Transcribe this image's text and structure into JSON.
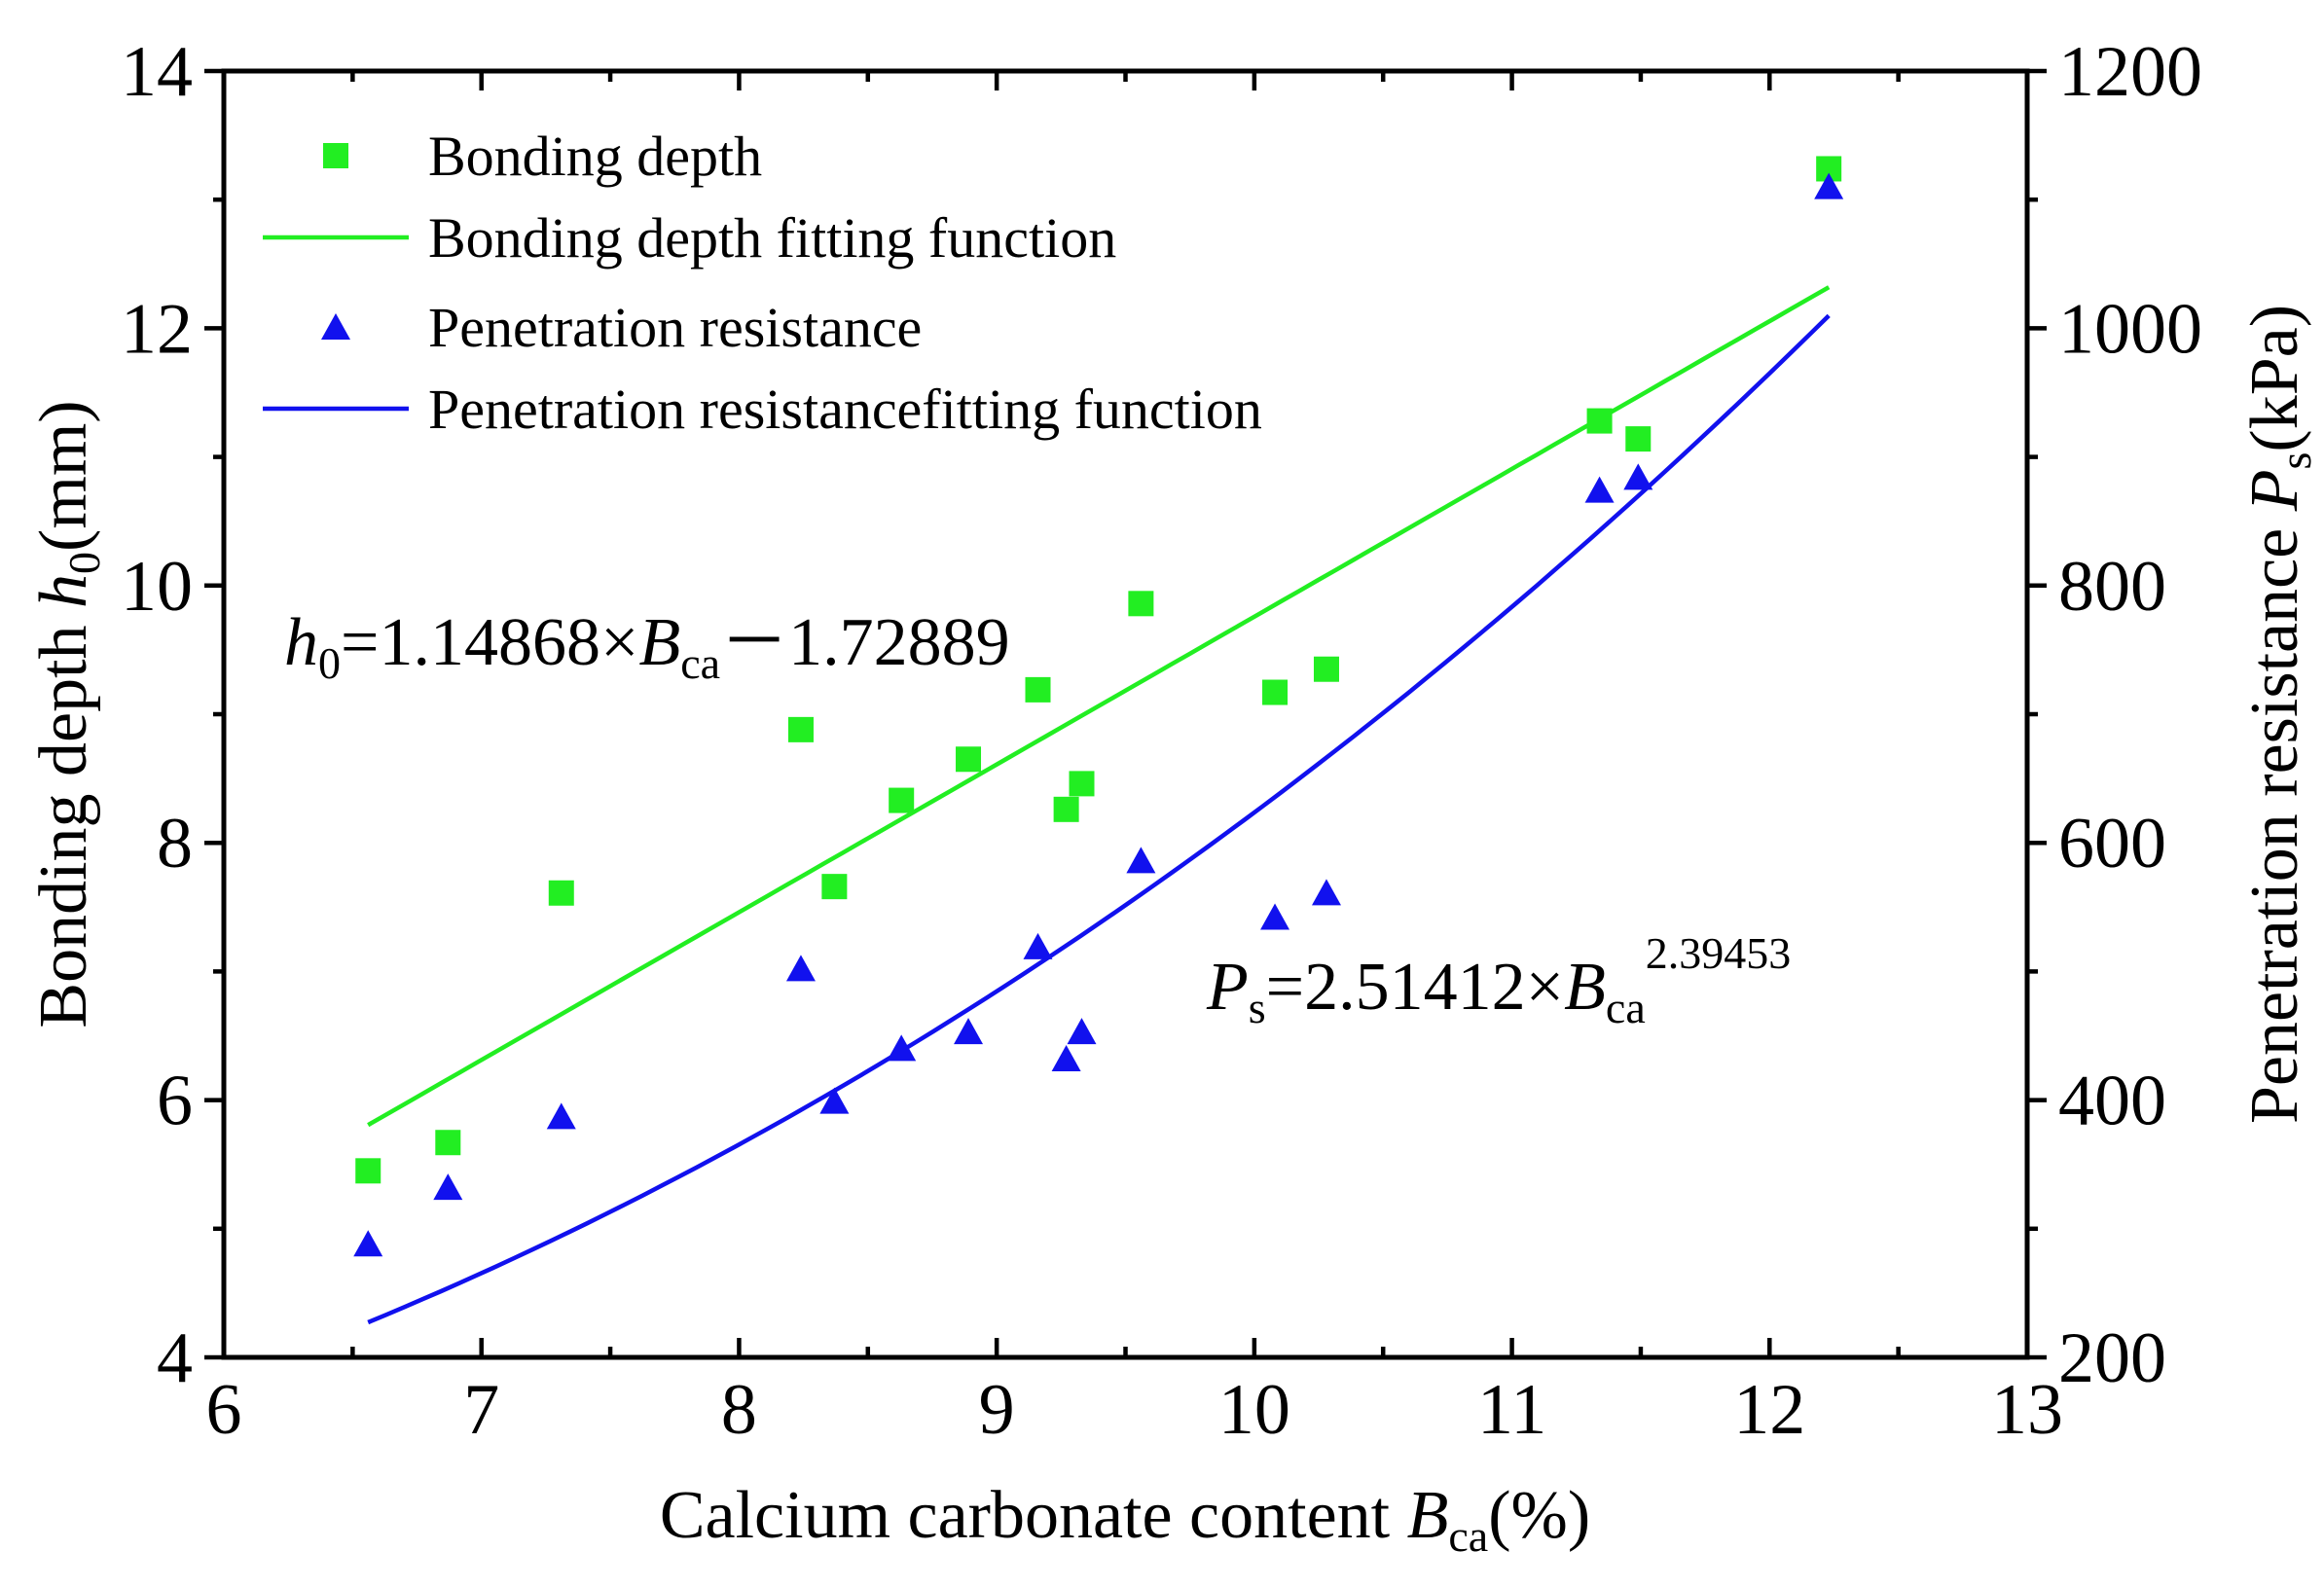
{
  "chart_data": {
    "type": "scatter",
    "title": "",
    "xlabel": {
      "text": "Calcium carbonate content ",
      "var": "B",
      "sub": "ca",
      "suffix": "(%)"
    },
    "ylabel": {
      "text": "Bonding depth ",
      "var": "h",
      "sub": "0",
      "suffix": "(mm)"
    },
    "y2label": {
      "text": "Penetration resistance ",
      "var": "P",
      "sub": "s",
      "suffix": "(kPa)"
    },
    "xlim": [
      6,
      13
    ],
    "ylim": [
      4,
      14
    ],
    "y2lim": [
      200,
      1200
    ],
    "x_ticks": [
      "6",
      "7",
      "8",
      "9",
      "10",
      "11",
      "12",
      "13"
    ],
    "y_ticks": [
      "4",
      "6",
      "8",
      "10",
      "12",
      "14"
    ],
    "y2_ticks": [
      "200",
      "400",
      "600",
      "800",
      "1000",
      "1200"
    ],
    "legend_position": "top-left",
    "colors": {
      "green": "#22ee22",
      "blue": "#1111ee",
      "axis": "#000000"
    },
    "series": [
      {
        "name": "Bonding depth",
        "marker": "square",
        "color": "#22ee22",
        "axis": "left",
        "points": [
          [
            6.56,
            5.45
          ],
          [
            6.87,
            5.67
          ],
          [
            7.31,
            7.61
          ],
          [
            8.24,
            8.88
          ],
          [
            8.37,
            7.66
          ],
          [
            8.63,
            8.33
          ],
          [
            8.89,
            8.65
          ],
          [
            9.16,
            9.19
          ],
          [
            9.27,
            8.26
          ],
          [
            9.33,
            8.46
          ],
          [
            9.56,
            9.86
          ],
          [
            10.08,
            9.17
          ],
          [
            10.28,
            9.35
          ],
          [
            11.34,
            11.28
          ],
          [
            11.49,
            11.14
          ],
          [
            12.23,
            13.24
          ]
        ]
      },
      {
        "name": "Penetration resistance",
        "marker": "triangle",
        "color": "#1111ee",
        "axis": "right",
        "points": [
          [
            6.56,
            286
          ],
          [
            6.87,
            330
          ],
          [
            7.31,
            385
          ],
          [
            8.24,
            500
          ],
          [
            8.37,
            397
          ],
          [
            8.63,
            438
          ],
          [
            8.89,
            451
          ],
          [
            9.16,
            517
          ],
          [
            9.27,
            430
          ],
          [
            9.33,
            451
          ],
          [
            9.56,
            584
          ],
          [
            10.08,
            540
          ],
          [
            10.28,
            559
          ],
          [
            11.34,
            872
          ],
          [
            11.49,
            882
          ],
          [
            12.23,
            1108
          ]
        ]
      }
    ],
    "fits": [
      {
        "name": "Bonding depth fitting function",
        "color": "#22ee22",
        "axis": "left",
        "kind": "linear",
        "a": 1.14868,
        "b": -1.72889,
        "x_range": [
          6.56,
          12.23
        ]
      },
      {
        "name": "Penetration resistancefitting function",
        "color": "#1111ee",
        "axis": "right",
        "kind": "power",
        "a": 2.51412,
        "b": 2.39453,
        "x_range": [
          6.56,
          12.23
        ]
      }
    ],
    "annotations": {
      "eq1": {
        "var": "h",
        "sub": "0",
        "text": "=1.14868×",
        "var2": "B",
        "sub2": "ca",
        "tail": "－1.72889"
      },
      "eq2": {
        "var": "P",
        "sub": "s",
        "text": "=2.51412×",
        "var2": "B",
        "sub2": "ca",
        "sup": "2.39453"
      }
    }
  }
}
